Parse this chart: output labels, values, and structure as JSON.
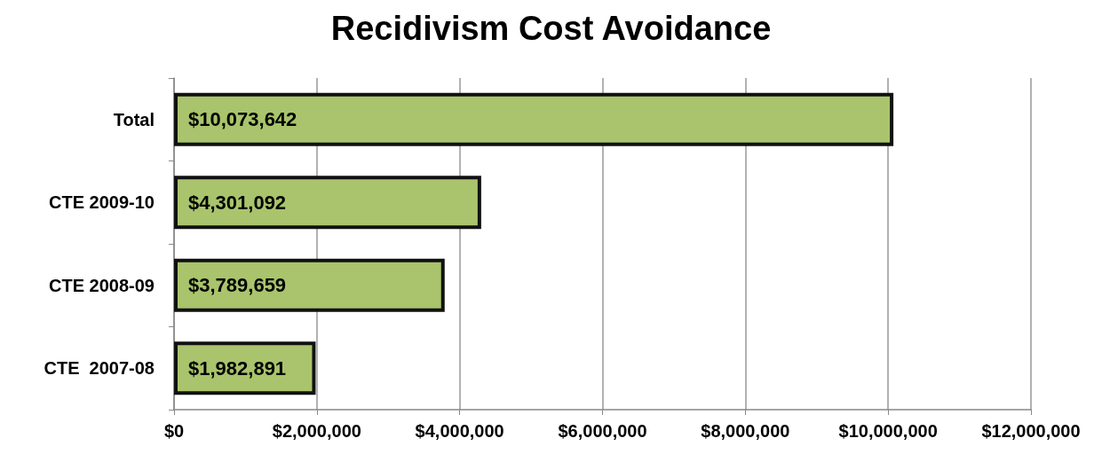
{
  "chart_data": {
    "type": "bar",
    "title": "Recidivism Cost Avoidance",
    "orientation": "horizontal",
    "categories": [
      "Total",
      "CTE 2009-10",
      "CTE 2008-09",
      "CTE  2007-08"
    ],
    "values": [
      10073642,
      4301092,
      3789659,
      1982891
    ],
    "value_labels": [
      "$10,073,642",
      "$4,301,092",
      "$3,789,659",
      "$1,982,891"
    ],
    "color": "#a9c46c",
    "xlim": [
      0,
      12000000
    ],
    "xticks": [
      {
        "value": 0,
        "label": "$0"
      },
      {
        "value": 2000000,
        "label": "$2,000,000"
      },
      {
        "value": 4000000,
        "label": "$4,000,000"
      },
      {
        "value": 6000000,
        "label": "$6,000,000"
      },
      {
        "value": 8000000,
        "label": "$8,000,000"
      },
      {
        "value": 10000000,
        "label": "$10,000,000"
      },
      {
        "value": 12000000,
        "label": "$12,000,000"
      }
    ],
    "grid": "x"
  }
}
